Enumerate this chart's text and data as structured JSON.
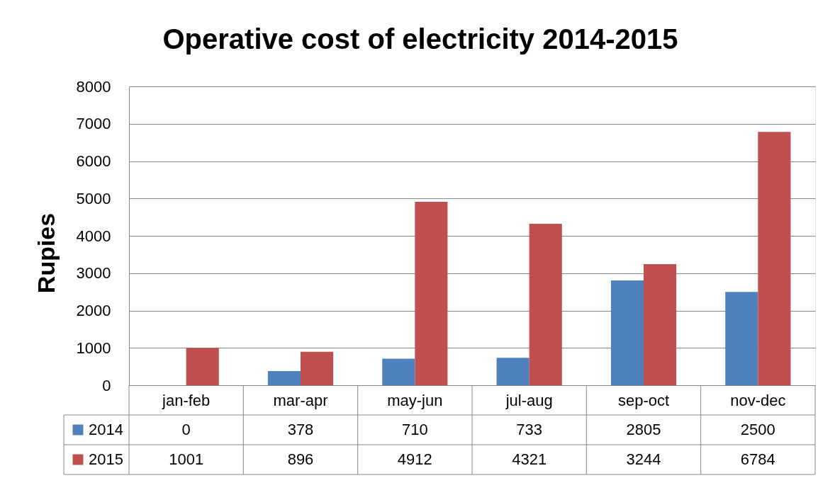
{
  "chart_data": {
    "type": "bar",
    "title": "Operative cost of electricity 2014-2015",
    "ylabel": "Rupies",
    "categories": [
      "jan-feb",
      "mar-apr",
      "may-jun",
      "jul-aug",
      "sep-oct",
      "nov-dec"
    ],
    "series": [
      {
        "name": "2014",
        "color": "#4f81bd",
        "values": [
          0,
          378,
          710,
          733,
          2805,
          2500
        ]
      },
      {
        "name": "2015",
        "color": "#c0504d",
        "values": [
          1001,
          896,
          4912,
          4321,
          3244,
          6784
        ]
      }
    ],
    "ylim": [
      0,
      8000
    ],
    "yticks": [
      0,
      1000,
      2000,
      3000,
      4000,
      5000,
      6000,
      7000,
      8000
    ],
    "grid": "y",
    "legend": "bottom left",
    "data_labels": true
  }
}
